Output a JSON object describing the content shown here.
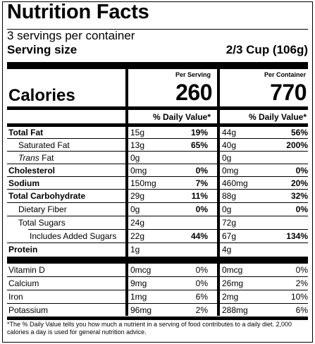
{
  "header": {
    "title": "Nutrition Facts",
    "servings": "3 servings per container",
    "serving_size_label": "Serving size",
    "serving_size_value": "2/3 Cup (106g)"
  },
  "calories": {
    "label": "Calories",
    "per_serving_label": "Per Serving",
    "per_container_label": "Per Container",
    "per_serving": "260",
    "per_container": "770"
  },
  "dv_header": "% Daily Value*",
  "nutrients": [
    {
      "name": "Total Fat",
      "serv_amt": "15g",
      "serv_pct": "19%",
      "cont_amt": "44g",
      "cont_pct": "56%"
    },
    {
      "name": "Saturated Fat",
      "serv_amt": "13g",
      "serv_pct": "65%",
      "cont_amt": "40g",
      "cont_pct": "200%"
    },
    {
      "name_italic": "Trans",
      "name_rest": " Fat",
      "serv_amt": "0g",
      "serv_pct": "",
      "cont_amt": "0g",
      "cont_pct": ""
    },
    {
      "name": "Cholesterol",
      "serv_amt": "0mg",
      "serv_pct": "0%",
      "cont_amt": "0mg",
      "cont_pct": "0%"
    },
    {
      "name": "Sodium",
      "serv_amt": "150mg",
      "serv_pct": "7%",
      "cont_amt": "460mg",
      "cont_pct": "20%"
    },
    {
      "name": "Total Carbohydrate",
      "serv_amt": "29g",
      "serv_pct": "11%",
      "cont_amt": "88g",
      "cont_pct": "32%"
    },
    {
      "name": "Dietary Fiber",
      "serv_amt": "0g",
      "serv_pct": "0%",
      "cont_amt": "0g",
      "cont_pct": "0%"
    },
    {
      "name": "Total Sugars",
      "serv_amt": "24g",
      "serv_pct": "",
      "cont_amt": "72g",
      "cont_pct": ""
    },
    {
      "name": "Includes Added Sugars",
      "serv_amt": "22g",
      "serv_pct": "44%",
      "cont_amt": "67g",
      "cont_pct": "134%"
    },
    {
      "name": "Protein",
      "serv_amt": "1g",
      "serv_pct": "",
      "cont_amt": "4g",
      "cont_pct": ""
    }
  ],
  "vitamins": [
    {
      "name": "Vitamin D",
      "serv_amt": "0mcg",
      "serv_pct": "0%",
      "cont_amt": "0mcg",
      "cont_pct": "0%"
    },
    {
      "name": "Calcium",
      "serv_amt": "9mg",
      "serv_pct": "0%",
      "cont_amt": "26mg",
      "cont_pct": "2%"
    },
    {
      "name": "Iron",
      "serv_amt": "1mg",
      "serv_pct": "6%",
      "cont_amt": "2mg",
      "cont_pct": "10%"
    },
    {
      "name": "Potassium",
      "serv_amt": "96mg",
      "serv_pct": "2%",
      "cont_amt": "288mg",
      "cont_pct": "6%"
    }
  ],
  "footnote": "*The % Daily Value tells you how much a nutrient in a serving of food contributes to a daily diet. 2,000 calories a day is used for general nutrition advice."
}
